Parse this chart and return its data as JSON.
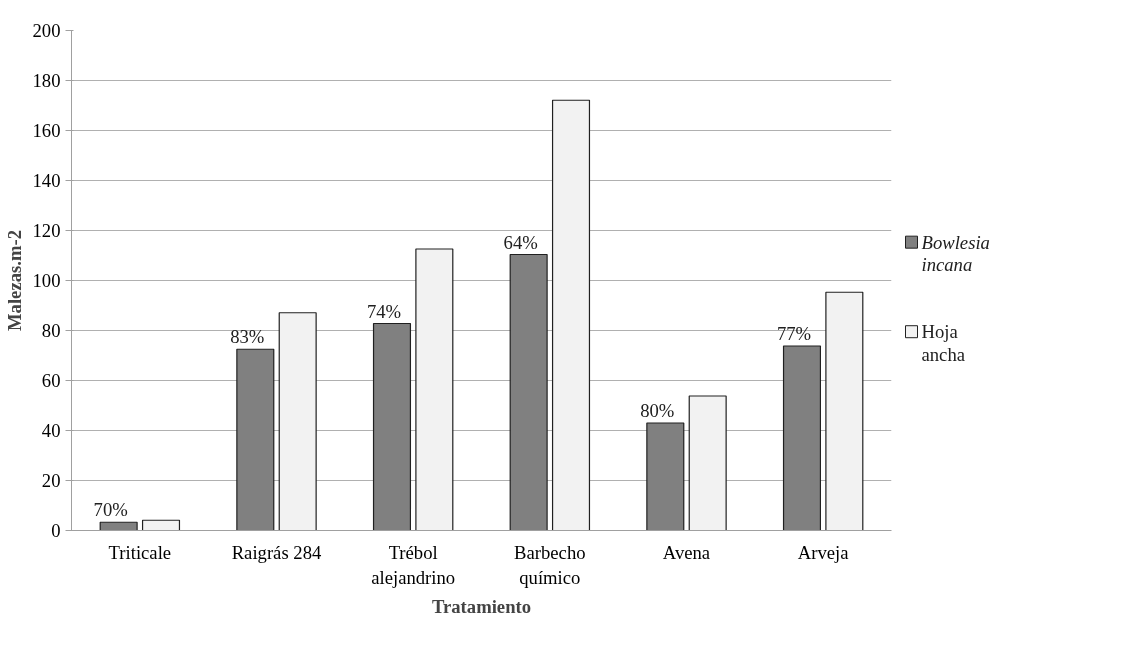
{
  "chart_data": {
    "type": "bar",
    "xlabel": "Tratamiento",
    "ylabel": "Malezas.m-2",
    "categories": [
      "Triticale",
      "Raigrás 284",
      "Trébol alejandrino",
      "Barbecho químico",
      "Avena",
      "Arveja"
    ],
    "series": [
      {
        "name": "Bowlesia incana",
        "color": "#808080",
        "values": [
          3.3,
          72.5,
          82.8,
          110.4,
          43.0,
          73.8
        ]
      },
      {
        "name": "Hoja ancha",
        "color": "#f2f2f2",
        "values": [
          4.1,
          87.1,
          112.6,
          172.1,
          53.8,
          95.3
        ]
      }
    ],
    "annotations": [
      {
        "text": "70%",
        "x": "Triticale",
        "y": 3.3
      },
      {
        "text": "83%",
        "x": "Raigrás 284",
        "y": 72.5
      },
      {
        "text": "74%",
        "x": "Trébol alejandrino",
        "y": 82.8
      },
      {
        "text": "64%",
        "x": "Barbecho químico",
        "y": 110.4
      },
      {
        "text": "80%",
        "x": "Avena",
        "y": 43.0
      },
      {
        "text": "77%",
        "x": "Arveja",
        "y": 73.8
      }
    ],
    "ylim": [
      0,
      200
    ],
    "yticks": [
      0,
      20,
      40,
      60,
      80,
      100,
      120,
      140,
      160,
      180,
      200
    ],
    "grid": "y",
    "legend": "right"
  }
}
